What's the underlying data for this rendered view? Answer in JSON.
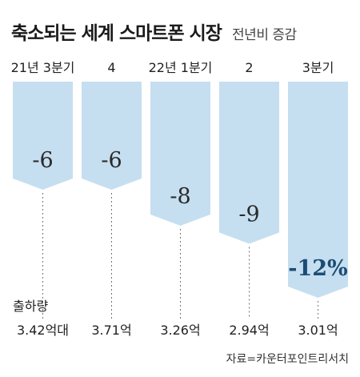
{
  "title": "축소되는 세계 스마트폰 시장",
  "subtitle": "전년비 증감",
  "source": "자료=카운터포인트리서치",
  "colors": {
    "bar": "#c5dff0",
    "accent_label": "#1c4d74",
    "leader": "#777777"
  },
  "chart_data": {
    "type": "bar",
    "orientation": "downward",
    "title": "축소되는 세계 스마트폰 시장",
    "subtitle": "전년비 증감",
    "categories": [
      "21년 3분기",
      "4",
      "22년 1분기",
      "2",
      "3분기"
    ],
    "series": [
      {
        "name": "전년비 증감",
        "values": [
          -6,
          -6,
          -8,
          -9,
          -12
        ]
      }
    ],
    "value_labels": [
      "-6",
      "-6",
      "-8",
      "-9",
      "-12%"
    ],
    "shipments": {
      "label": "출하량",
      "values": [
        "3.42억대",
        "3.71억",
        "3.26억",
        "2.94억",
        "3.01억"
      ]
    },
    "ylim": [
      -12,
      0
    ]
  }
}
